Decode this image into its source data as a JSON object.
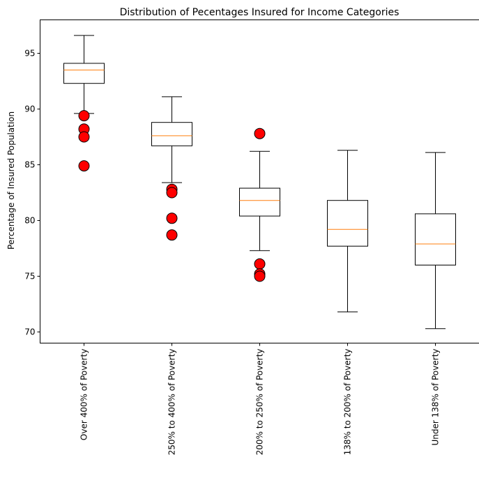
{
  "chart_data": {
    "type": "box",
    "title": "Distribution of Pecentages Insured for Income Categories",
    "xlabel": "",
    "ylabel": "Percentage of Insured Population",
    "ylim": [
      69.0,
      98.0
    ],
    "yticks": [
      70,
      75,
      80,
      85,
      90,
      95
    ],
    "grid": false,
    "categories": [
      "Over 400% of Poverty",
      "250% to 400% of Poverty",
      "200% to 250% of Poverty",
      "138% to 200% of Poverty",
      "Under 138% of Poverty"
    ],
    "boxes": [
      {
        "whisker_low": 89.6,
        "q1": 92.3,
        "median": 93.5,
        "q3": 94.1,
        "whisker_high": 96.6,
        "outliers": [
          89.4,
          88.2,
          87.5,
          84.9
        ]
      },
      {
        "whisker_low": 83.4,
        "q1": 86.7,
        "median": 87.6,
        "q3": 88.8,
        "whisker_high": 91.1,
        "outliers": [
          82.8,
          82.5,
          80.2,
          78.7
        ]
      },
      {
        "whisker_low": 77.3,
        "q1": 80.4,
        "median": 81.8,
        "q3": 82.9,
        "whisker_high": 86.2,
        "outliers": [
          87.8,
          76.1,
          75.2,
          75.0
        ]
      },
      {
        "whisker_low": 71.8,
        "q1": 77.7,
        "median": 79.2,
        "q3": 81.8,
        "whisker_high": 86.3,
        "outliers": []
      },
      {
        "whisker_low": 70.3,
        "q1": 76.0,
        "median": 77.9,
        "q3": 80.6,
        "whisker_high": 86.1,
        "outliers": []
      }
    ],
    "colors": {
      "box": "#000000",
      "median": "#ff7f0e",
      "outlier_fill": "#ff0000",
      "outlier_edge": "#000000"
    }
  }
}
